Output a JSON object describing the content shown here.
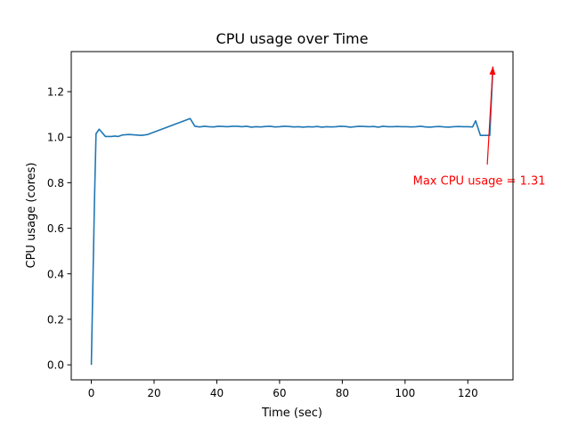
{
  "chart_data": {
    "type": "line",
    "title": "CPU usage over Time",
    "xlabel": "Time (sec)",
    "ylabel": "CPU usage (cores)",
    "xlim": [
      -6.4,
      134.4
    ],
    "ylim": [
      -0.066,
      1.376
    ],
    "xticks": [
      0,
      20,
      40,
      60,
      80,
      100,
      120
    ],
    "yticks": [
      0.0,
      0.2,
      0.4,
      0.6,
      0.8,
      1.0,
      1.2
    ],
    "ytick_labels": [
      "0.0",
      "0.2",
      "0.4",
      "0.6",
      "0.8",
      "1.0",
      "1.2"
    ],
    "grid": false,
    "series": [
      {
        "color": "#1f77b4",
        "x": [
          0,
          1,
          1.5,
          2.5,
          4.5,
          6.5,
          7.5,
          8.5,
          10,
          12,
          14,
          16,
          18,
          31.5,
          33,
          34.5,
          36,
          37.5,
          39,
          40.5,
          42,
          43.5,
          45,
          46.5,
          48,
          49.5,
          51,
          52.5,
          54,
          55.5,
          57,
          58.5,
          60,
          61.5,
          63,
          64.5,
          66,
          67.5,
          69,
          70.5,
          72,
          73.5,
          75,
          76.5,
          78,
          79.5,
          81,
          82.5,
          84,
          85.5,
          87,
          88.5,
          90,
          91.5,
          93,
          94.5,
          96,
          97.5,
          99,
          100.5,
          102,
          103.5,
          105,
          106.5,
          108,
          109.5,
          111,
          112.5,
          114,
          115.5,
          117,
          118.5,
          120,
          121.5,
          122.5,
          124,
          125.5,
          127,
          128
        ],
        "y": [
          0.0,
          0.72,
          1.015,
          1.035,
          1.003,
          1.003,
          1.005,
          1.003,
          1.01,
          1.012,
          1.01,
          1.008,
          1.012,
          1.082,
          1.048,
          1.045,
          1.048,
          1.046,
          1.045,
          1.048,
          1.047,
          1.046,
          1.048,
          1.048,
          1.046,
          1.048,
          1.044,
          1.046,
          1.045,
          1.047,
          1.048,
          1.045,
          1.046,
          1.048,
          1.047,
          1.045,
          1.046,
          1.044,
          1.046,
          1.045,
          1.047,
          1.044,
          1.046,
          1.045,
          1.046,
          1.048,
          1.047,
          1.044,
          1.046,
          1.048,
          1.047,
          1.046,
          1.047,
          1.044,
          1.048,
          1.046,
          1.046,
          1.047,
          1.046,
          1.046,
          1.045,
          1.046,
          1.048,
          1.045,
          1.044,
          1.046,
          1.047,
          1.045,
          1.044,
          1.046,
          1.047,
          1.046,
          1.046,
          1.045,
          1.072,
          1.008,
          1.008,
          1.008,
          1.31
        ]
      }
    ],
    "annotations": [
      {
        "text": "Max CPU usage = 1.31",
        "color": "#ff0000",
        "xy": [
          128,
          1.31
        ],
        "xytext": [
          102.5,
          0.81
        ]
      }
    ]
  }
}
